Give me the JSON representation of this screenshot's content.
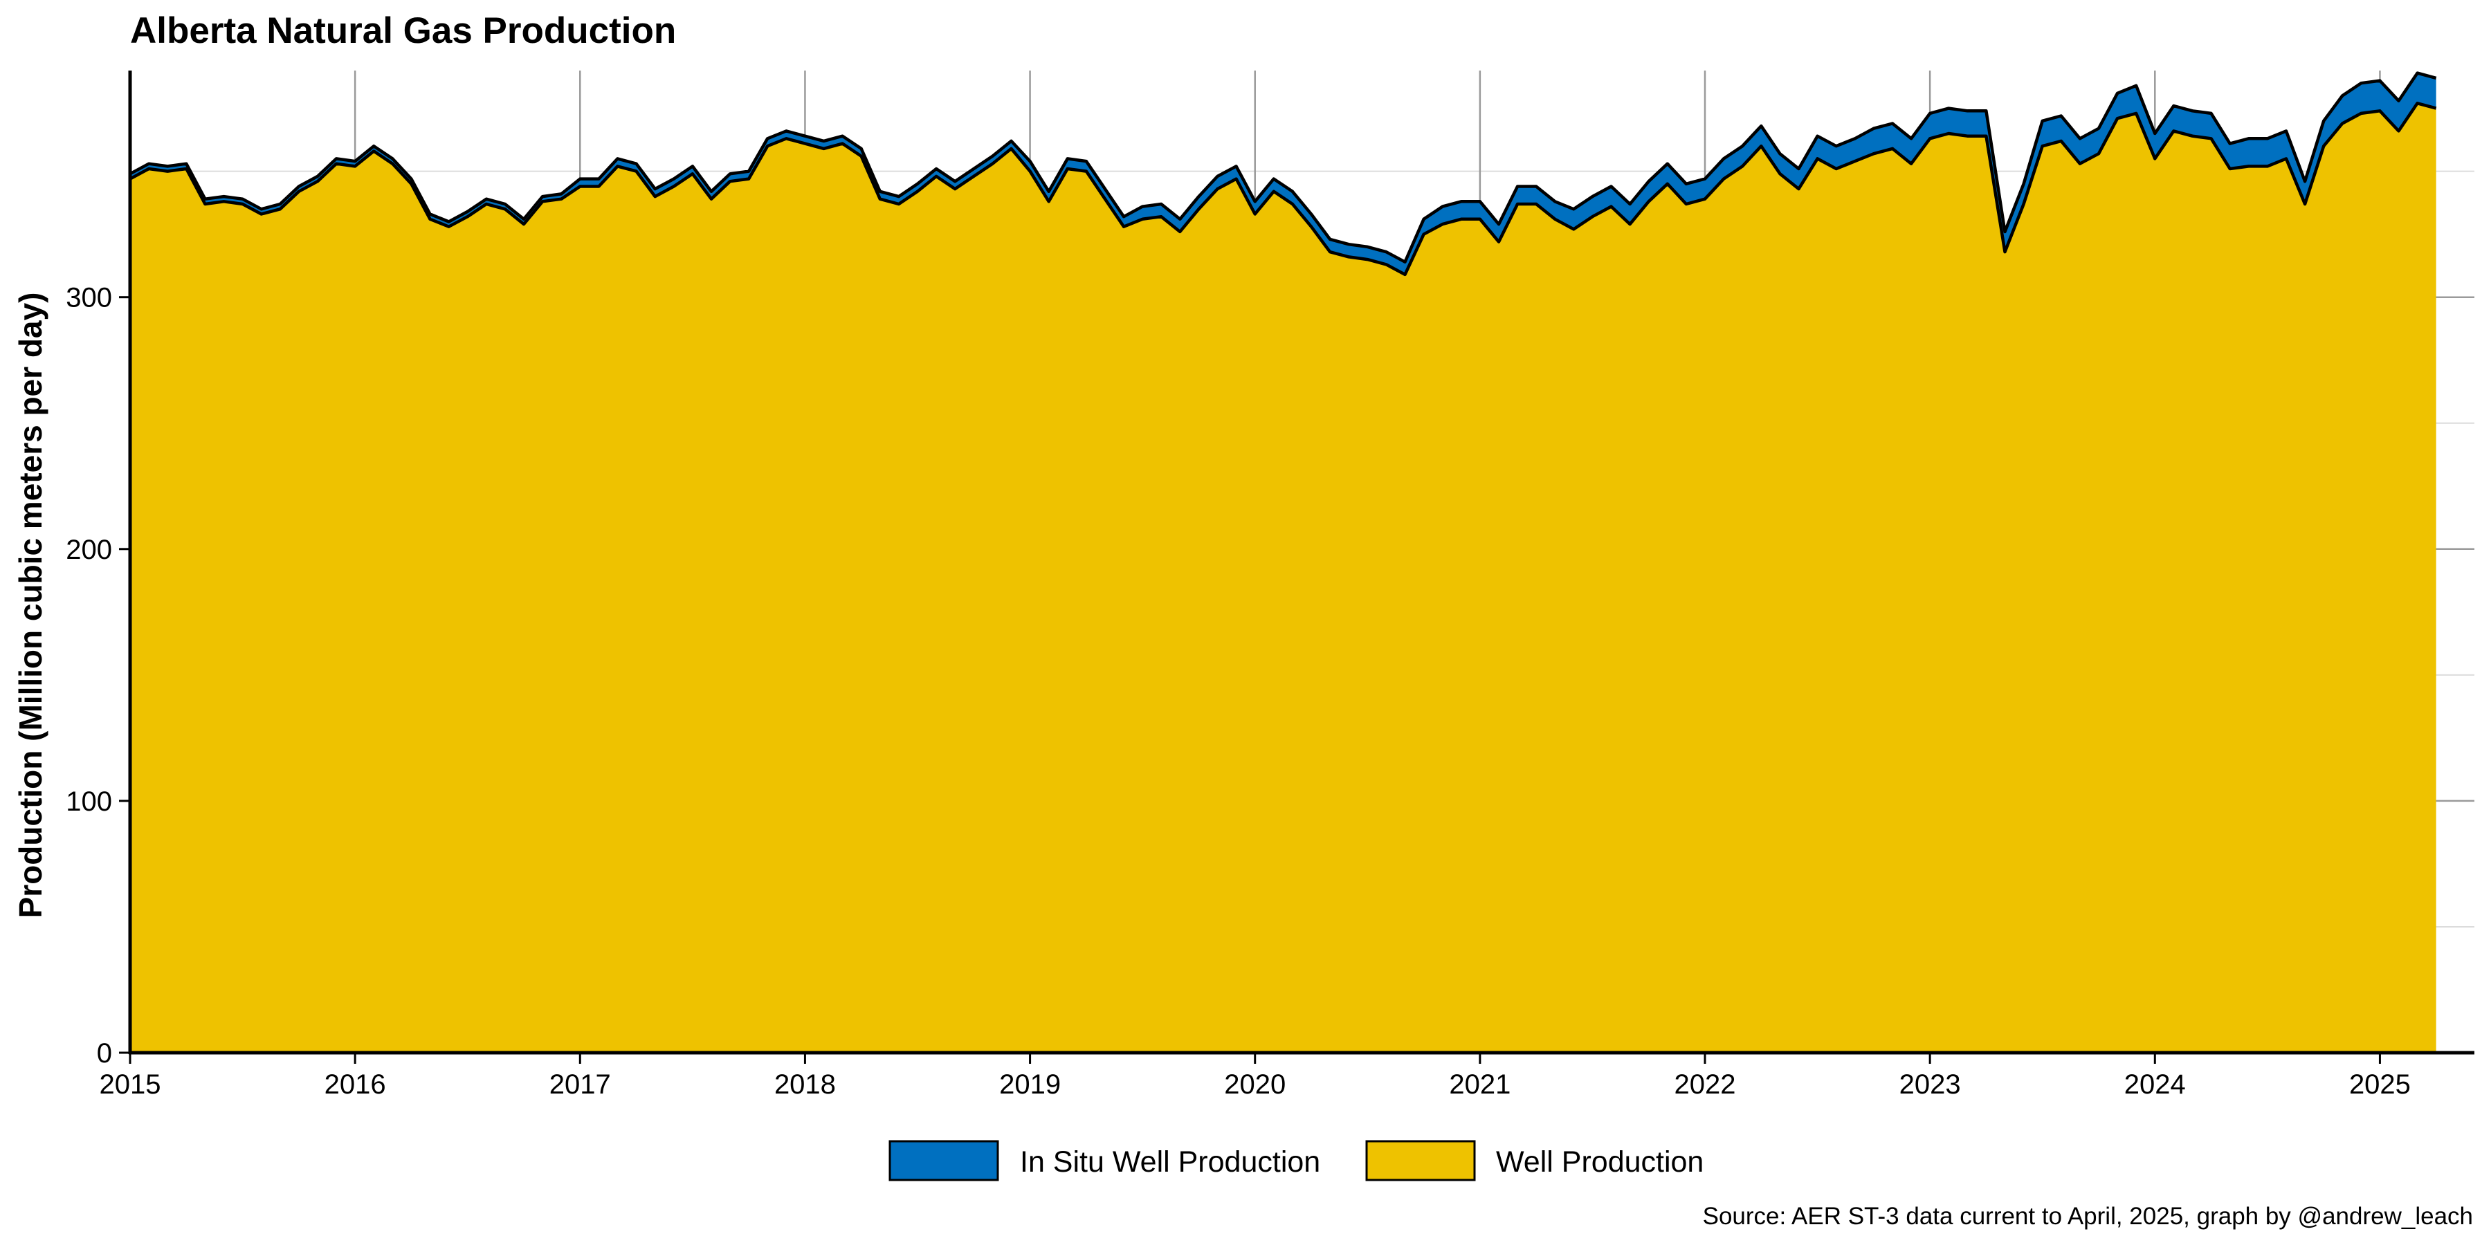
{
  "chart_data": {
    "type": "area",
    "stacked": true,
    "title": "Alberta Natural Gas Production",
    "xlabel": "",
    "ylabel": "Production (Million cubic meters per day)",
    "caption": "Source: AER ST-3 data current to April, 2025, graph by @andrew_leach",
    "xlim": [
      2015.0,
      2025.42
    ],
    "ylim": [
      0,
      390
    ],
    "x_ticks": [
      "2015",
      "2016",
      "2017",
      "2018",
      "2019",
      "2020",
      "2021",
      "2022",
      "2023",
      "2024",
      "2025"
    ],
    "y_ticks": [
      0,
      100,
      200,
      300
    ],
    "grid": {
      "vertical": true,
      "horizontal": true
    },
    "legend": {
      "position": "bottom"
    },
    "colors": {
      "well": "#EEC200",
      "in_situ": "#0070C0",
      "outline": "#000000",
      "grid_major": "#9a9a9a",
      "grid_minor": "#dcdcdc"
    },
    "series": [
      {
        "name": "Well Production",
        "color": "#EEC200",
        "start": "2015-01",
        "frequency": "monthly",
        "values": [
          347,
          351,
          350,
          351,
          337,
          338,
          337,
          333,
          335,
          342,
          346,
          353,
          352,
          358,
          353,
          345,
          331,
          328,
          332,
          337,
          335,
          329,
          338,
          339,
          344,
          344,
          352,
          350,
          340,
          344,
          349,
          339,
          346,
          347,
          360,
          363,
          361,
          359,
          361,
          356,
          339,
          337,
          342,
          348,
          343,
          348,
          353,
          359,
          350,
          338,
          351,
          350,
          339,
          328,
          331,
          332,
          326,
          335,
          343,
          347,
          333,
          342,
          337,
          328,
          318,
          316,
          315,
          313,
          309,
          325,
          329,
          331,
          331,
          322,
          337,
          337,
          331,
          327,
          332,
          336,
          329,
          338,
          345,
          337,
          339,
          347,
          352,
          360,
          349,
          343,
          355,
          351,
          354,
          357,
          359,
          353,
          363,
          365,
          364,
          364,
          318,
          337,
          360,
          362,
          353,
          357,
          371,
          373,
          355,
          366,
          364,
          363,
          351,
          352,
          352,
          355,
          337,
          360,
          369,
          373,
          374,
          366,
          377,
          375
        ],
        "end": "2025-04"
      },
      {
        "name": "In Situ Well Production",
        "color": "#0070C0",
        "start": "2015-01",
        "frequency": "monthly",
        "values": [
          2,
          2,
          2,
          2,
          2,
          2,
          2,
          2,
          2,
          2,
          2,
          2,
          2,
          2,
          2,
          2,
          2,
          2,
          2,
          2,
          2,
          2,
          2,
          2,
          3,
          3,
          3,
          3,
          3,
          3,
          3,
          3,
          3,
          3,
          3,
          3,
          3,
          3,
          3,
          3,
          3,
          3,
          3,
          3,
          3,
          3,
          3,
          3,
          4,
          4,
          4,
          4,
          4,
          4,
          5,
          5,
          5,
          5,
          5,
          5,
          5,
          5,
          5,
          5,
          5,
          5,
          5,
          5,
          5,
          6,
          7,
          7,
          7,
          7,
          7,
          7,
          7,
          8,
          8,
          8,
          8,
          8,
          8,
          8,
          8,
          8,
          8,
          8,
          8,
          8,
          9,
          9,
          9,
          10,
          10,
          10,
          10,
          10,
          10,
          10,
          8,
          8,
          10,
          10,
          10,
          10,
          10,
          11,
          10,
          10,
          10,
          10,
          10,
          11,
          11,
          11,
          9,
          10,
          11,
          12,
          12,
          12,
          12,
          12
        ]
      }
    ]
  }
}
